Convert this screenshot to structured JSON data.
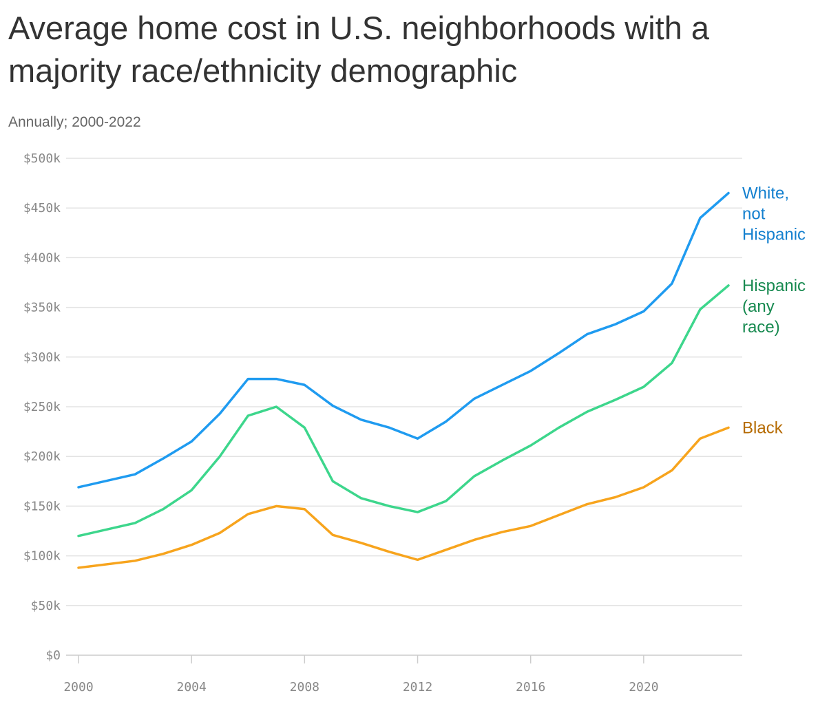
{
  "title": "Average home cost in U.S. neighborhoods with a majority race/ethnicity demographic",
  "subtitle": "Annually; 2000-2022",
  "chart_data": {
    "type": "line",
    "title": "Average home cost in U.S. neighborhoods with a majority race/ethnicity demographic",
    "subtitle": "Annually; 2000-2022",
    "xlabel": "",
    "ylabel": "",
    "grid": true,
    "legend": "direct labels at right end of lines",
    "xlim": [
      2000,
      2023
    ],
    "ylim": [
      0,
      500
    ],
    "x_ticks": [
      2000,
      2004,
      2008,
      2012,
      2016,
      2020
    ],
    "x_tick_labels": [
      "2000",
      "2004",
      "2008",
      "2012",
      "2016",
      "2020"
    ],
    "y_ticks": [
      0,
      50,
      100,
      150,
      200,
      250,
      300,
      350,
      400,
      450,
      500
    ],
    "y_tick_labels": [
      "$0",
      "$50k",
      "$100k",
      "$150k",
      "$200k",
      "$250k",
      "$300k",
      "$350k",
      "$400k",
      "$450k",
      "$500k"
    ],
    "x": [
      2000,
      2002,
      2003,
      2004,
      2005,
      2006,
      2007,
      2008,
      2009,
      2010,
      2011,
      2012,
      2013,
      2014,
      2015,
      2016,
      2017,
      2018,
      2019,
      2020,
      2021,
      2022,
      2023
    ],
    "series": [
      {
        "name": "White, not Hispanic",
        "label_lines": [
          "White,",
          "not",
          "Hispanic"
        ],
        "color": "#1f9bf0",
        "label_color": "#1480cf",
        "values": [
          169,
          182,
          198,
          215,
          243,
          278,
          278,
          272,
          251,
          237,
          229,
          218,
          235,
          258,
          272,
          286,
          304,
          323,
          333,
          346,
          374,
          440,
          465
        ]
      },
      {
        "name": "Hispanic (any race)",
        "label_lines": [
          "Hispanic",
          "(any",
          "race)"
        ],
        "color": "#3dd68c",
        "label_color": "#16894f",
        "values": [
          120,
          133,
          147,
          166,
          200,
          241,
          250,
          229,
          175,
          158,
          150,
          144,
          155,
          180,
          196,
          211,
          229,
          245,
          257,
          270,
          294,
          348,
          372
        ]
      },
      {
        "name": "Black",
        "label_lines": [
          "Black"
        ],
        "color": "#f7a41d",
        "label_color": "#b56a00",
        "values": [
          88,
          95,
          102,
          111,
          123,
          142,
          150,
          147,
          121,
          113,
          104,
          96,
          106,
          116,
          124,
          130,
          141,
          152,
          159,
          169,
          186,
          218,
          229
        ]
      }
    ]
  }
}
